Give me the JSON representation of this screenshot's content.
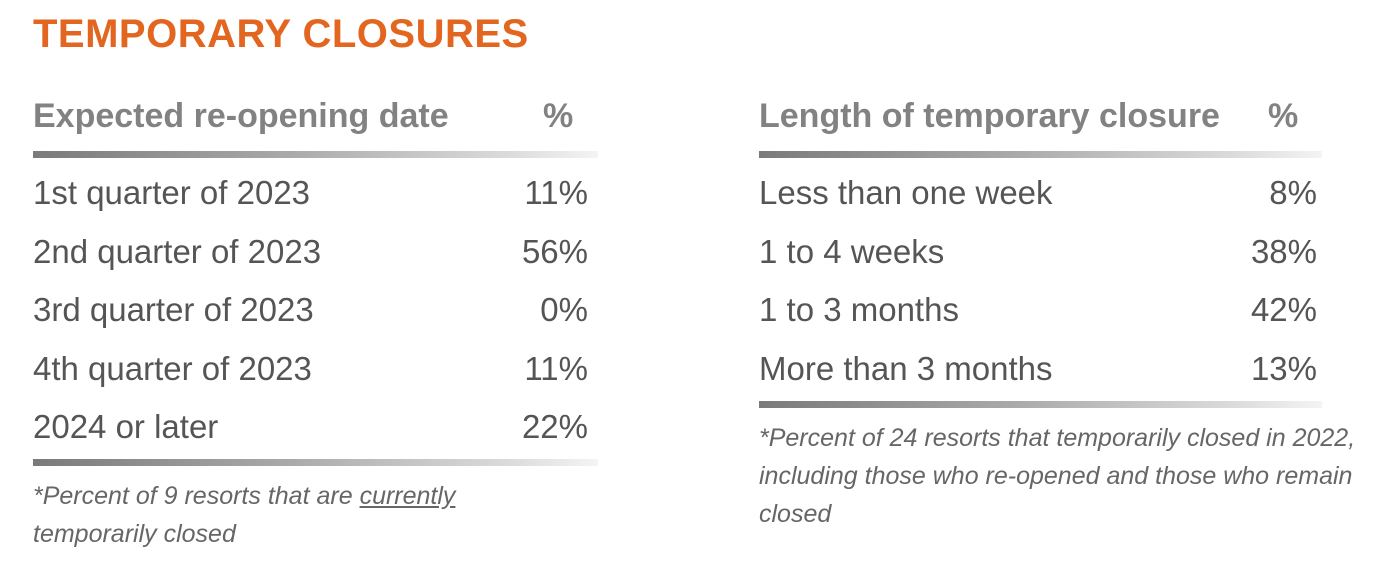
{
  "title": "TEMPORARY CLOSURES",
  "left_table": {
    "header_label": "Expected re-opening date",
    "header_pct": "%",
    "rows": [
      {
        "label": "1st quarter of 2023",
        "value": "11%"
      },
      {
        "label": "2nd quarter of 2023",
        "value": "56%"
      },
      {
        "label": "3rd quarter of 2023",
        "value": "0%"
      },
      {
        "label": "4th quarter of 2023",
        "value": "11%"
      },
      {
        "label": "2024 or later",
        "value": "22%"
      }
    ],
    "note_before": "*Percent of 9 resorts that are ",
    "note_underlined": "currently",
    "note_after": "temporarily closed"
  },
  "right_table": {
    "header_label": "Length of temporary closure",
    "header_pct": "%",
    "rows": [
      {
        "label": "Less than one week",
        "value": "8%"
      },
      {
        "label": "1 to 4 weeks",
        "value": "38%"
      },
      {
        "label": "1 to 3 months",
        "value": "42%"
      },
      {
        "label": "More than 3 months",
        "value": "13%"
      }
    ],
    "note": "*Percent of 24 resorts that temporarily closed in 2022, including those who re-opened and those who remain closed"
  },
  "colors": {
    "title": "#e2661f",
    "header_text": "#828282",
    "body_text": "#555555"
  }
}
